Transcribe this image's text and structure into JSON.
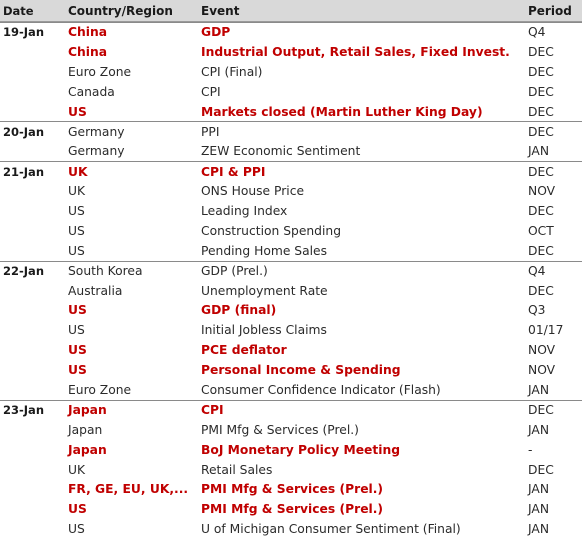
{
  "headers": {
    "date": "Date",
    "country": "Country/Region",
    "event": "Event",
    "period": "Period"
  },
  "rows": [
    {
      "date": "19-Jan",
      "country": "China",
      "event": "GDP",
      "period": "Q4",
      "highlight": true
    },
    {
      "date": "",
      "country": "China",
      "event": "Industrial Output, Retail Sales, Fixed Invest.",
      "period": "DEC",
      "highlight": true
    },
    {
      "date": "",
      "country": "Euro Zone",
      "event": "CPI (Final)",
      "period": "DEC",
      "highlight": false
    },
    {
      "date": "",
      "country": "Canada",
      "event": "CPI",
      "period": "DEC",
      "highlight": false
    },
    {
      "date": "",
      "country": "US",
      "event": "Markets closed (Martin Luther King Day)",
      "period": "DEC",
      "highlight": true
    },
    {
      "date": "20-Jan",
      "country": "Germany",
      "event": "PPI",
      "period": "DEC",
      "highlight": false
    },
    {
      "date": "",
      "country": "Germany",
      "event": "ZEW Economic Sentiment",
      "period": "JAN",
      "highlight": false
    },
    {
      "date": "21-Jan",
      "country": "UK",
      "event": "CPI & PPI",
      "period": "DEC",
      "highlight": true
    },
    {
      "date": "",
      "country": "UK",
      "event": "ONS House Price",
      "period": "NOV",
      "highlight": false
    },
    {
      "date": "",
      "country": "US",
      "event": "Leading Index",
      "period": "DEC",
      "highlight": false
    },
    {
      "date": "",
      "country": "US",
      "event": "Construction Spending",
      "period": "OCT",
      "highlight": false
    },
    {
      "date": "",
      "country": "US",
      "event": "Pending Home Sales",
      "period": "DEC",
      "highlight": false
    },
    {
      "date": "22-Jan",
      "country": "South Korea",
      "event": "GDP (Prel.)",
      "period": "Q4",
      "highlight": false
    },
    {
      "date": "",
      "country": "Australia",
      "event": "Unemployment Rate",
      "period": "DEC",
      "highlight": false
    },
    {
      "date": "",
      "country": "US",
      "event": "GDP (final)",
      "period": "Q3",
      "highlight": true
    },
    {
      "date": "",
      "country": "US",
      "event": "Initial Jobless Claims",
      "period": "01/17",
      "highlight": false
    },
    {
      "date": "",
      "country": "US",
      "event": "PCE deflator",
      "period": "NOV",
      "highlight": true
    },
    {
      "date": "",
      "country": "US",
      "event": "Personal Income & Spending",
      "period": "NOV",
      "highlight": true
    },
    {
      "date": "",
      "country": "Euro Zone",
      "event": "Consumer Confidence Indicator (Flash)",
      "period": "JAN",
      "highlight": false
    },
    {
      "date": "23-Jan",
      "country": "Japan",
      "event": "CPI",
      "period": "DEC",
      "highlight": true
    },
    {
      "date": "",
      "country": "Japan",
      "event": "PMI Mfg & Services (Prel.)",
      "period": "JAN",
      "highlight": false
    },
    {
      "date": "",
      "country": "Japan",
      "event": "BoJ Monetary Policy Meeting",
      "period": "-",
      "highlight": true
    },
    {
      "date": "",
      "country": "UK",
      "event": "Retail Sales",
      "period": "DEC",
      "highlight": false
    },
    {
      "date": "",
      "country": "FR, GE, EU, UK,...",
      "event": "PMI Mfg & Services (Prel.)",
      "period": "JAN",
      "highlight": true
    },
    {
      "date": "",
      "country": "US",
      "event": "PMI Mfg & Services (Prel.)",
      "period": "JAN",
      "highlight": true
    },
    {
      "date": "",
      "country": "US",
      "event": "U of Michigan Consumer Sentiment (Final)",
      "period": "JAN",
      "highlight": false
    }
  ],
  "colors": {
    "highlight": "#c00000",
    "header_bg": "#d9d9d9",
    "text": "#2b2b2b"
  }
}
